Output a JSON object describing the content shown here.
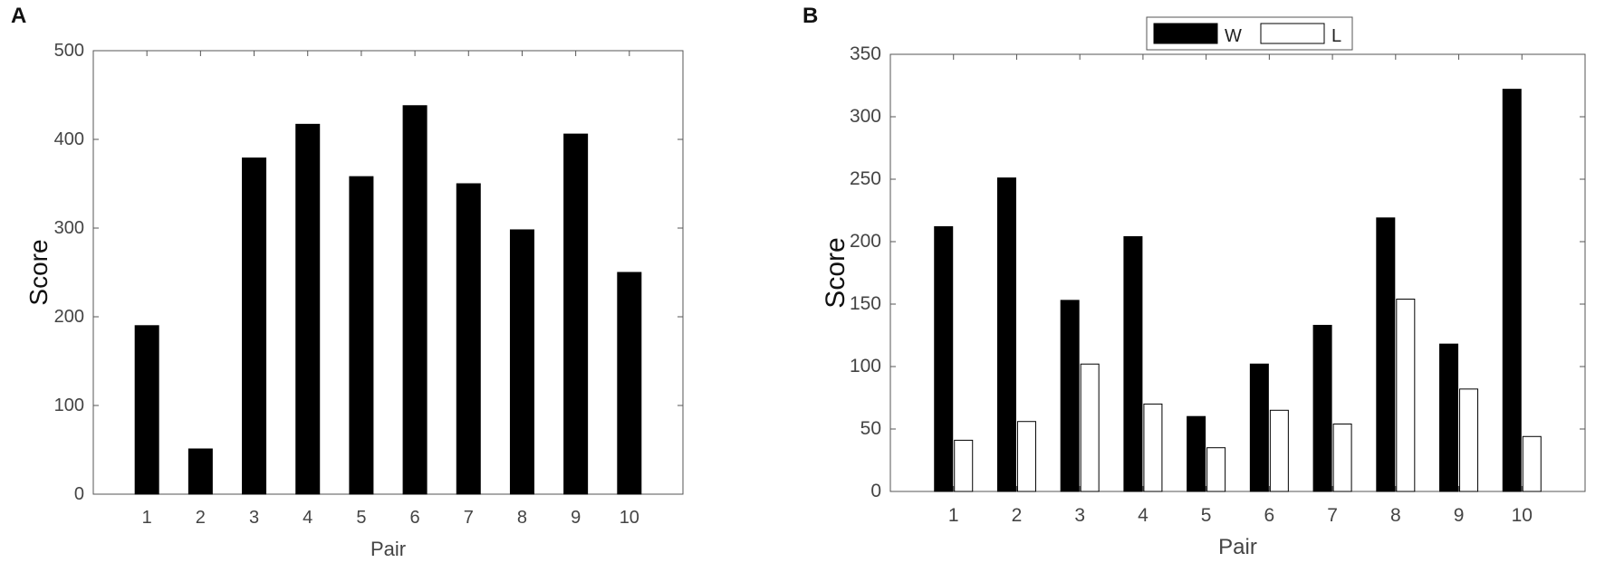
{
  "panels": [
    {
      "letter": "A"
    },
    {
      "letter": "B"
    }
  ],
  "chart_data": [
    {
      "type": "bar",
      "title": "",
      "xlabel": "Pair",
      "ylabel": "Score",
      "categories": [
        "1",
        "2",
        "3",
        "4",
        "5",
        "6",
        "7",
        "8",
        "9",
        "10"
      ],
      "values": [
        190,
        51,
        379,
        417,
        358,
        438,
        350,
        298,
        406,
        250
      ],
      "ylim": [
        0,
        500
      ],
      "yticks": [
        0,
        100,
        200,
        300,
        400,
        500
      ],
      "bar_color": "#000000",
      "grid": false
    },
    {
      "type": "bar",
      "title": "",
      "xlabel": "Pair",
      "ylabel": "Score",
      "categories": [
        "1",
        "2",
        "3",
        "4",
        "5",
        "6",
        "7",
        "8",
        "9",
        "10"
      ],
      "series": [
        {
          "name": "W",
          "values": [
            212,
            251,
            153,
            204,
            60,
            102,
            133,
            219,
            118,
            322
          ],
          "color": "#000000"
        },
        {
          "name": "L",
          "values": [
            41,
            56,
            102,
            70,
            35,
            65,
            54,
            154,
            82,
            44
          ],
          "color": "#ffffff"
        }
      ],
      "ylim": [
        0,
        350
      ],
      "yticks": [
        0,
        50,
        100,
        150,
        200,
        250,
        300,
        350
      ],
      "legend": "top-center",
      "grid": false
    }
  ]
}
